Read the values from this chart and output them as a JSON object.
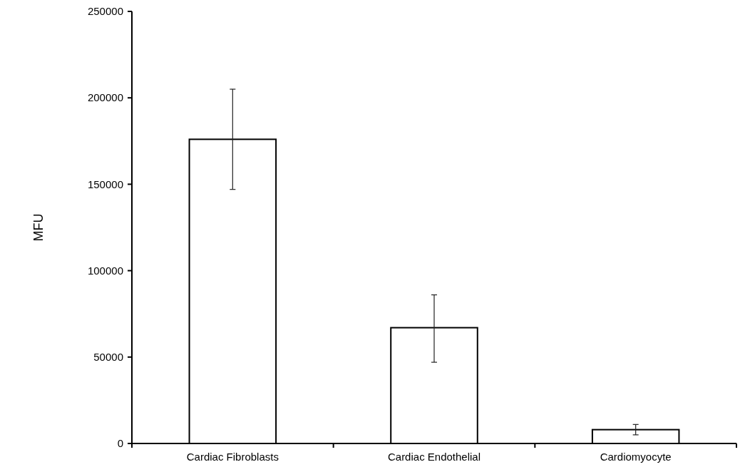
{
  "chart_data": {
    "type": "bar",
    "ylabel": "MFU",
    "categories": [
      "Cardiac Fibroblasts",
      "Cardiac Endothelial",
      "Cardiomyocyte"
    ],
    "values": [
      176000,
      67000,
      8000
    ],
    "errors": [
      [
        147000,
        205000
      ],
      [
        47000,
        86000
      ],
      [
        5000,
        11000
      ]
    ],
    "color": "#ffffff",
    "ylim": [
      0,
      250000
    ],
    "yticks": [
      0,
      50000,
      100000,
      150000,
      200000,
      250000
    ],
    "grid": false
  }
}
